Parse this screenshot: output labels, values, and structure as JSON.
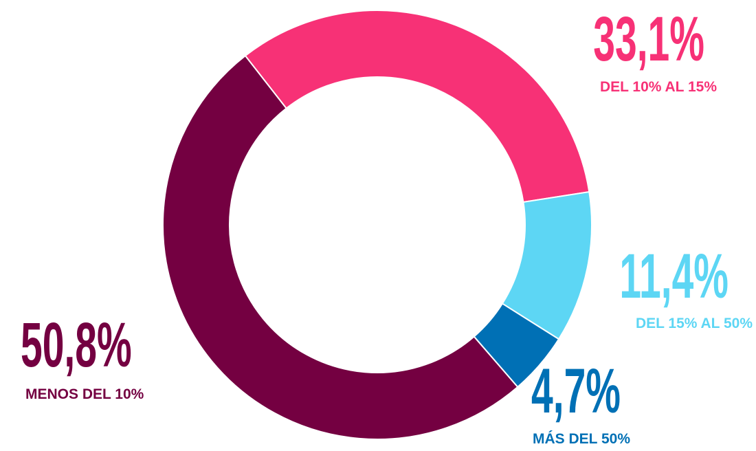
{
  "chart_data": {
    "type": "donut",
    "categories": [
      "DEL 10% AL 15%",
      "DEL 15% AL 50%",
      "MÁS DEL 50%",
      "MENOS DEL 10%"
    ],
    "values": [
      33.1,
      11.4,
      4.7,
      50.8
    ],
    "value_labels": [
      "33,1%",
      "11,4%",
      "4,7%",
      "50,8%"
    ],
    "colors": [
      "#f73176",
      "#5dd6f4",
      "#0070b5",
      "#740041"
    ]
  }
}
